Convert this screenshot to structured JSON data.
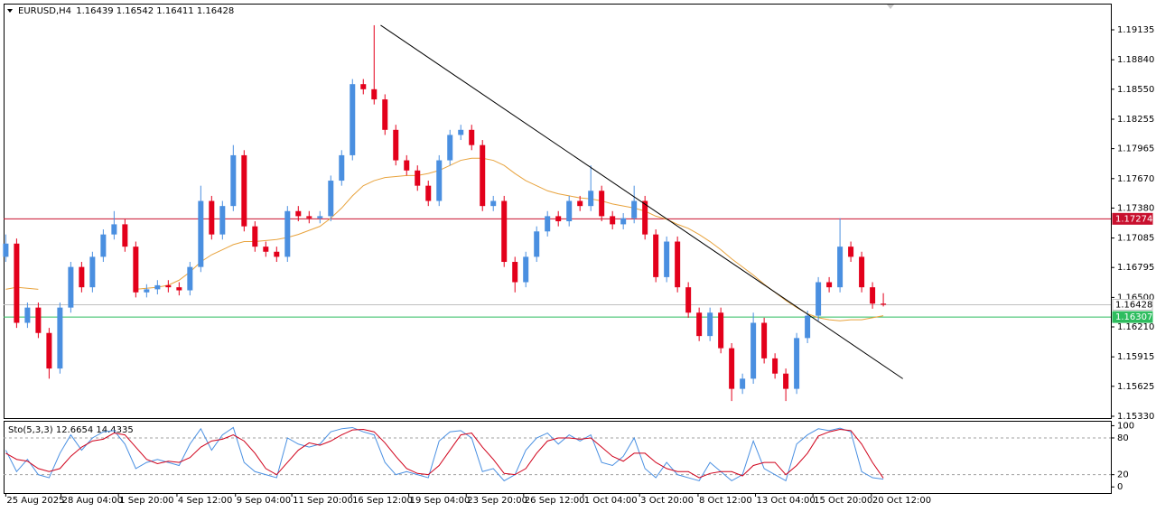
{
  "chart_data": [
    {
      "type": "candlestick",
      "symbol": "EURUSD,H4",
      "up_color": "#4a8fe0",
      "down_color": "#e3001b",
      "open": [
        1.169,
        1.1703,
        1.1625,
        1.164,
        1.1615,
        1.158,
        1.164,
        1.168,
        1.166,
        1.169,
        1.1712,
        1.1722,
        1.17,
        1.1655,
        1.1658,
        1.1662,
        1.166,
        1.1657,
        1.168,
        1.1745,
        1.1712,
        1.174,
        1.179,
        1.172,
        1.17,
        1.1695,
        1.169,
        1.1735,
        1.173,
        1.1728,
        1.173,
        1.1765,
        1.179,
        1.186,
        1.1855,
        1.1845,
        1.1815,
        1.1785,
        1.1775,
        1.176,
        1.1745,
        1.1785,
        1.181,
        1.1815,
        1.18,
        1.174,
        1.1745,
        1.1685,
        1.1665,
        1.169,
        1.1715,
        1.173,
        1.1725,
        1.1745,
        1.174,
        1.1755,
        1.173,
        1.1722,
        1.1728,
        1.1745,
        1.1712,
        1.167,
        1.1705,
        1.166,
        1.1635,
        1.1612,
        1.1635,
        1.16,
        1.156,
        1.157,
        1.1625,
        1.159,
        1.1575,
        1.156,
        1.161,
        1.1632,
        1.1665,
        1.166,
        1.17,
        1.169,
        1.166,
        1.16439
      ],
      "high": [
        1.1712,
        1.1708,
        1.1645,
        1.1645,
        1.162,
        1.1645,
        1.1685,
        1.1685,
        1.1695,
        1.1717,
        1.1735,
        1.1727,
        1.1705,
        1.1663,
        1.1667,
        1.1667,
        1.1665,
        1.1685,
        1.176,
        1.175,
        1.1745,
        1.18,
        1.1795,
        1.1725,
        1.1705,
        1.17,
        1.174,
        1.174,
        1.1735,
        1.1735,
        1.177,
        1.1795,
        1.1865,
        1.1865,
        1.1918,
        1.185,
        1.182,
        1.179,
        1.178,
        1.1765,
        1.179,
        1.1815,
        1.182,
        1.182,
        1.1805,
        1.175,
        1.175,
        1.169,
        1.1695,
        1.172,
        1.1735,
        1.1735,
        1.175,
        1.175,
        1.178,
        1.176,
        1.1735,
        1.1733,
        1.176,
        1.175,
        1.1717,
        1.171,
        1.171,
        1.1665,
        1.164,
        1.164,
        1.164,
        1.1605,
        1.1575,
        1.1635,
        1.163,
        1.1595,
        1.158,
        1.1615,
        1.1637,
        1.167,
        1.167,
        1.1728,
        1.1705,
        1.1695,
        1.1665,
        1.16542
      ],
      "low": [
        1.1685,
        1.162,
        1.162,
        1.161,
        1.157,
        1.1575,
        1.1635,
        1.1655,
        1.1655,
        1.1685,
        1.1707,
        1.1695,
        1.165,
        1.165,
        1.1653,
        1.1655,
        1.1652,
        1.1652,
        1.1675,
        1.1707,
        1.1707,
        1.1735,
        1.1715,
        1.1695,
        1.169,
        1.1685,
        1.1685,
        1.1725,
        1.1723,
        1.1723,
        1.1725,
        1.176,
        1.1785,
        1.185,
        1.184,
        1.181,
        1.178,
        1.177,
        1.1755,
        1.174,
        1.174,
        1.178,
        1.1805,
        1.1795,
        1.1735,
        1.1735,
        1.168,
        1.1655,
        1.166,
        1.1685,
        1.171,
        1.172,
        1.172,
        1.1735,
        1.1735,
        1.1725,
        1.1717,
        1.1717,
        1.1723,
        1.1707,
        1.1665,
        1.1665,
        1.1655,
        1.163,
        1.1607,
        1.1607,
        1.1595,
        1.1548,
        1.1555,
        1.1565,
        1.1585,
        1.157,
        1.1548,
        1.1555,
        1.1605,
        1.1627,
        1.1655,
        1.1655,
        1.1685,
        1.1655,
        1.16389,
        1.16411
      ],
      "close": [
        1.1703,
        1.1625,
        1.164,
        1.1615,
        1.158,
        1.164,
        1.168,
        1.166,
        1.169,
        1.1712,
        1.1722,
        1.17,
        1.1655,
        1.1658,
        1.1662,
        1.166,
        1.1657,
        1.168,
        1.1745,
        1.1712,
        1.174,
        1.179,
        1.172,
        1.17,
        1.1695,
        1.169,
        1.1735,
        1.173,
        1.1728,
        1.173,
        1.1765,
        1.179,
        1.186,
        1.1855,
        1.1845,
        1.1815,
        1.1785,
        1.1775,
        1.176,
        1.1745,
        1.1785,
        1.181,
        1.1815,
        1.18,
        1.174,
        1.1745,
        1.1685,
        1.1665,
        1.169,
        1.1715,
        1.173,
        1.1725,
        1.1745,
        1.174,
        1.1755,
        1.173,
        1.1722,
        1.1728,
        1.1745,
        1.1712,
        1.167,
        1.1705,
        1.166,
        1.1635,
        1.1612,
        1.1635,
        1.16,
        1.156,
        1.157,
        1.1625,
        1.159,
        1.1575,
        1.156,
        1.161,
        1.1632,
        1.1665,
        1.166,
        1.17,
        1.169,
        1.166,
        1.16439,
        1.16428
      ],
      "ma": {
        "color": "#e8a33d",
        "values": [
          1.1658,
          1.166,
          1.1659,
          1.1658,
          null,
          null,
          null,
          null,
          null,
          null,
          null,
          null,
          1.1658,
          1.1659,
          1.166,
          1.1662,
          1.1667,
          1.1675,
          1.1685,
          1.1692,
          1.1697,
          1.1702,
          1.1705,
          1.1705,
          1.1706,
          1.1707,
          1.1709,
          1.1712,
          1.1716,
          1.172,
          1.1728,
          1.1738,
          1.175,
          1.176,
          1.1765,
          1.1768,
          1.1769,
          1.177,
          1.177,
          1.1772,
          1.1775,
          1.178,
          1.1785,
          1.1787,
          1.1787,
          1.1785,
          1.178,
          1.1772,
          1.1765,
          1.176,
          1.1755,
          1.1752,
          1.175,
          1.1748,
          1.1747,
          1.1745,
          1.1742,
          1.174,
          1.1738,
          1.1735,
          1.173,
          1.1727,
          1.1722,
          1.1718,
          1.1712,
          1.1705,
          1.1697,
          1.1688,
          1.168,
          1.1672,
          1.1663,
          1.1655,
          1.1647,
          1.164,
          1.1634,
          1.163,
          1.1628,
          1.1627,
          1.1628,
          1.1628,
          1.163,
          1.1632
        ]
      },
      "trendline": {
        "color": "#000000",
        "x": [
          34.6,
          82.8
        ],
        "y": [
          1.1918,
          1.157
        ]
      },
      "hlines": [
        {
          "value": 1.17274,
          "color": "#c8102e",
          "label_bg": "#c8102e",
          "label_fg": "#ffffff"
        },
        {
          "value": 1.16428,
          "color": "#c0c0c0",
          "label_bg": "#ffffff",
          "label_fg": "#000000"
        },
        {
          "value": 1.16307,
          "color": "#2ebd5f",
          "label_bg": "#2ebd5f",
          "label_fg": "#ffffff"
        }
      ],
      "xlim": [
        -0.2,
        102
      ],
      "ylim": [
        1.15312,
        1.19393
      ],
      "yticks": [
        1.19135,
        {
          "value": 1.1884,
          "label": "1.18840"
        },
        {
          "value": 1.1855,
          "label": "1.18550"
        },
        1.18255,
        1.17965,
        {
          "value": 1.1767,
          "label": "1.17670"
        },
        {
          "value": 1.1738,
          "label": "1.17380"
        },
        1.17085,
        1.16795,
        {
          "value": 1.165,
          "label": "1.16500"
        },
        {
          "value": 1.1621,
          "label": "1.16210"
        },
        1.15915,
        1.15625,
        {
          "value": 1.1533,
          "label": "1.15330"
        }
      ],
      "xticks": [
        {
          "value": 0,
          "label": "25 Aug 2025"
        },
        {
          "value": 5.1,
          "label": "28 Aug 04:00"
        },
        {
          "value": 10.4,
          "label": "1 Sep 20:00"
        },
        {
          "value": 15.8,
          "label": "4 Sep 12:00"
        },
        {
          "value": 21.2,
          "label": "9 Sep 04:00"
        },
        {
          "value": 26.4,
          "label": "11 Sep 20:00"
        },
        {
          "value": 31.9,
          "label": "16 Sep 12:00"
        },
        {
          "value": 37.2,
          "label": "19 Sep 04:00"
        },
        {
          "value": 42.5,
          "label": "23 Sep 20:00"
        },
        {
          "value": 47.8,
          "label": "26 Sep 12:00"
        },
        {
          "value": 53.3,
          "label": "1 Oct 04:00"
        },
        {
          "value": 58.5,
          "label": "3 Oct 20:00"
        },
        {
          "value": 63.9,
          "label": "8 Oct 12:00"
        },
        {
          "value": 69.2,
          "label": "13 Oct 04:00"
        },
        {
          "value": 74.5,
          "label": "15 Oct 20:00"
        },
        {
          "value": 79.9,
          "label": "20 Oct 12:00"
        }
      ]
    },
    {
      "type": "line",
      "title": "Sto(5,3,3)",
      "xlim": [
        -0.2,
        102
      ],
      "ylim": [
        -10,
        108
      ],
      "yticks": [
        100,
        80,
        20,
        0
      ],
      "levels": [
        80,
        20
      ],
      "series": [
        {
          "color": "#4a90e2",
          "values": [
            60,
            25,
            45,
            20,
            15,
            55,
            85,
            60,
            80,
            90,
            92,
            70,
            30,
            40,
            45,
            40,
            35,
            70,
            95,
            60,
            85,
            97,
            40,
            25,
            20,
            15,
            80,
            70,
            65,
            70,
            90,
            95,
            97,
            90,
            85,
            40,
            20,
            25,
            20,
            15,
            75,
            90,
            92,
            80,
            25,
            30,
            10,
            20,
            60,
            80,
            88,
            70,
            85,
            75,
            85,
            40,
            35,
            50,
            80,
            30,
            15,
            40,
            20,
            15,
            10,
            40,
            25,
            10,
            20,
            75,
            30,
            20,
            10,
            70,
            85,
            95,
            92,
            96,
            90,
            25,
            15,
            12.6654
          ]
        },
        {
          "color": "#d0021b",
          "values": [
            55,
            45,
            42,
            30,
            25,
            30,
            50,
            65,
            75,
            78,
            88,
            85,
            65,
            45,
            38,
            42,
            40,
            48,
            65,
            75,
            78,
            85,
            75,
            55,
            30,
            20,
            40,
            60,
            72,
            68,
            75,
            85,
            93,
            94,
            90,
            72,
            50,
            30,
            22,
            20,
            35,
            60,
            85,
            88,
            65,
            45,
            22,
            20,
            30,
            55,
            75,
            80,
            80,
            78,
            80,
            65,
            50,
            42,
            55,
            55,
            40,
            30,
            25,
            25,
            15,
            22,
            25,
            25,
            18,
            35,
            40,
            40,
            20,
            35,
            55,
            83,
            90,
            94,
            92,
            70,
            40,
            14.4335
          ]
        }
      ]
    }
  ]
}
